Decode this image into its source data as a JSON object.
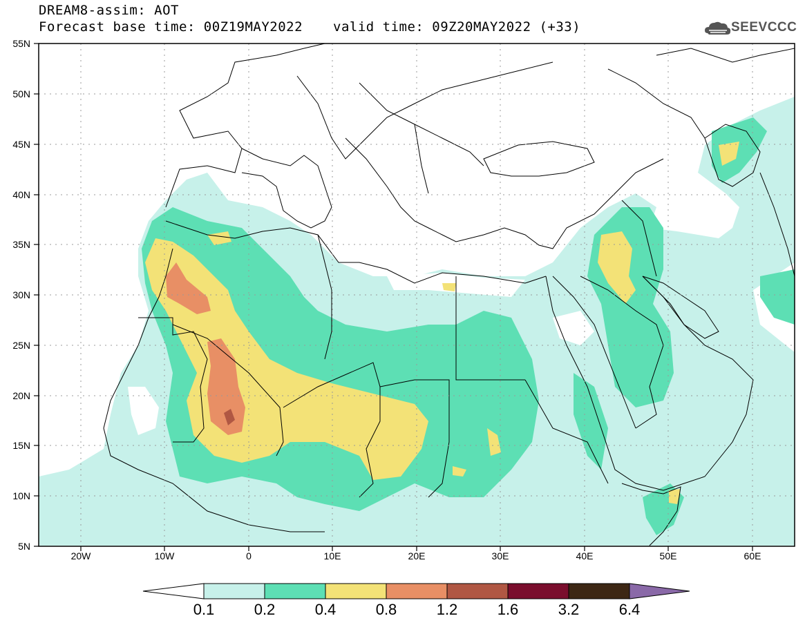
{
  "header": {
    "title": "DREAM8-assim: AOT",
    "base_time": "Forecast base time: 00Z19MAY2022",
    "valid_time": "valid time: 09Z20MAY2022 (+33)",
    "logo_text": "SEEVCCC"
  },
  "map": {
    "lon_range": [
      -25,
      65
    ],
    "lat_range": [
      5,
      55
    ],
    "lat_ticks": [
      "55N",
      "50N",
      "45N",
      "40N",
      "35N",
      "30N",
      "25N",
      "20N",
      "15N",
      "10N",
      "5N"
    ],
    "lon_ticks": [
      "20W",
      "10W",
      "0",
      "10E",
      "20E",
      "30E",
      "40E",
      "50E",
      "60E"
    ]
  },
  "legend": {
    "levels": [
      "0.1",
      "0.2",
      "0.4",
      "0.8",
      "1.2",
      "1.6",
      "3.2",
      "6.4"
    ],
    "colors": [
      "#c7f1ea",
      "#5ddfb4",
      "#f3e277",
      "#e88f65",
      "#b05743",
      "#7a0e2d",
      "#3d2714",
      "#8a69a8"
    ]
  }
}
